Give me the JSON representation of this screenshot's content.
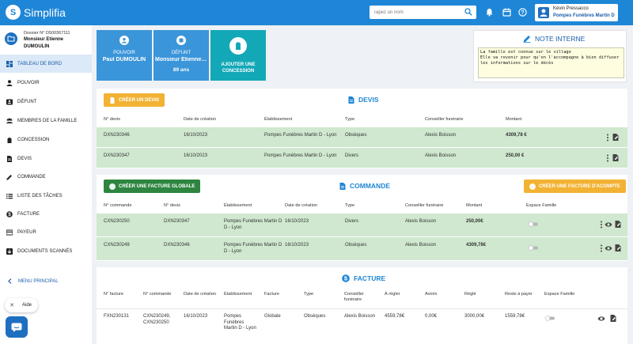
{
  "header": {
    "app_name": "Simplifia",
    "search_placeholder": "Tapez un nom",
    "user_name": "Kévin Pressacco",
    "company": "Pompes Funèbres Martin D",
    "icons": [
      "bell-icon",
      "calendar-icon",
      "help-icon"
    ]
  },
  "sidebar": {
    "dossier_number": "Dossier N° D500367111",
    "dossier_name": "Monsieur Etienne DUMOULIN",
    "items": [
      {
        "label": "TABLEAU DE BORD",
        "icon": "dashboard-icon",
        "active": true
      },
      {
        "label": "POUVOIR",
        "icon": "person-icon"
      },
      {
        "label": "DÉFUNT",
        "icon": "id-card-icon"
      },
      {
        "label": "MEMBRES DE LA FAMILLE",
        "icon": "group-icon"
      },
      {
        "label": "CONCESSION",
        "icon": "cemetery-icon"
      },
      {
        "label": "DEVIS",
        "icon": "document-icon"
      },
      {
        "label": "COMMANDE",
        "icon": "edit-icon"
      },
      {
        "label": "LISTE DES TÂCHES",
        "icon": "list-icon"
      },
      {
        "label": "FACTURE",
        "icon": "dollar-icon"
      },
      {
        "label": "PAYEUR",
        "icon": "card-icon"
      },
      {
        "label": "DOCUMENTS SCANNÉS",
        "icon": "scan-icon"
      }
    ],
    "menu_principal": "MENU PRINCIPAL",
    "aide": "Aide"
  },
  "cards": {
    "pouvoir": {
      "title": "POUVOIR",
      "value": "Paul DUMOULIN"
    },
    "defunt": {
      "title": "DÉFUNT",
      "value": "Monsieur Etienne DUMOULIN",
      "sub": "89 ans"
    },
    "concession": {
      "title_line1": "AJOUTER UNE",
      "title_line2": "CONCESSION"
    }
  },
  "note": {
    "title": "NOTE INTERNE",
    "text": "La famille est connue sur le village\nElle va revenir pour qu'on l'accompagne à bien diffuser les informations sur le décès"
  },
  "devis": {
    "title": "DEVIS",
    "create_button": "CRÉER UN DEVIS",
    "columns": [
      "N° devis",
      "Date de création",
      "Établissement",
      "Type",
      "Conseiller funéraire",
      "Montant"
    ],
    "rows": [
      {
        "num": "DXN230346",
        "date": "16/10/2023",
        "etab": "Pompes Funèbres Martin D - Lyon",
        "type": "Obsèques",
        "conseiller": "Alexis Boisson",
        "montant": "4309,78 €"
      },
      {
        "num": "DXN230347",
        "date": "16/10/2023",
        "etab": "Pompes Funèbres Martin D - Lyon",
        "type": "Divers",
        "conseiller": "Alexis Boisson",
        "montant": "250,00 €"
      }
    ]
  },
  "commande": {
    "title": "COMMANDE",
    "create_global": "CRÉER UNE FACTURE GLOBALE",
    "create_acompte": "CRÉER UNE FACTURE D'ACOMPTE",
    "columns": [
      "N° commande",
      "N° devis",
      "Établissement",
      "Date de création",
      "Type",
      "Conseiller funéraire",
      "Montant",
      "Espace Famille"
    ],
    "rows": [
      {
        "num": "CXN230250",
        "devis": "DXN230347",
        "etab_1": "Pompes Funèbres Martin D",
        "etab_2": "D - Lyon",
        "date": "16/10/2023",
        "type": "Divers",
        "conseiller": "Alexis Boisson",
        "montant": "250,00€",
        "espace_famille": false
      },
      {
        "num": "CXN230249",
        "devis": "DXN230346",
        "etab_1": "Pompes Funèbres Martin D",
        "etab_2": "D - Lyon",
        "date": "16/10/2023",
        "type": "Obsèques",
        "conseiller": "Alexis Boisson",
        "montant": "4309,78€",
        "espace_famille": false
      }
    ]
  },
  "facture": {
    "title": "FACTURE",
    "columns": [
      "N° facture",
      "N° commande",
      "Date de création",
      "Établissement",
      "Facture",
      "Type",
      "Conseiller funéraire",
      "À régler",
      "Avoirs",
      "Réglé",
      "Reste à payer",
      "Espace Famille"
    ],
    "rows": [
      {
        "num": "FXN230131",
        "commande_1": "CXN230249,",
        "commande_2": "CXN230250",
        "date": "16/10/2023",
        "etab_1": "Pompes",
        "etab_2": "Funèbres",
        "etab_3": "Martin D - Lyon",
        "facture": "Globale",
        "type": "Obsèques",
        "conseiller": "Alexis Boisson",
        "a_regler": "4559,78€",
        "avoirs": "0,00€",
        "regle": "3000,00€",
        "reste": "1559,78€",
        "espace_famille": false
      }
    ]
  },
  "colors": {
    "primary": "#1e86d6",
    "nav": "#1a5ea8",
    "teal": "#13a8b7",
    "row_green": "#cfe8cf",
    "yellow": "#f2b233",
    "green": "#2e8540"
  }
}
